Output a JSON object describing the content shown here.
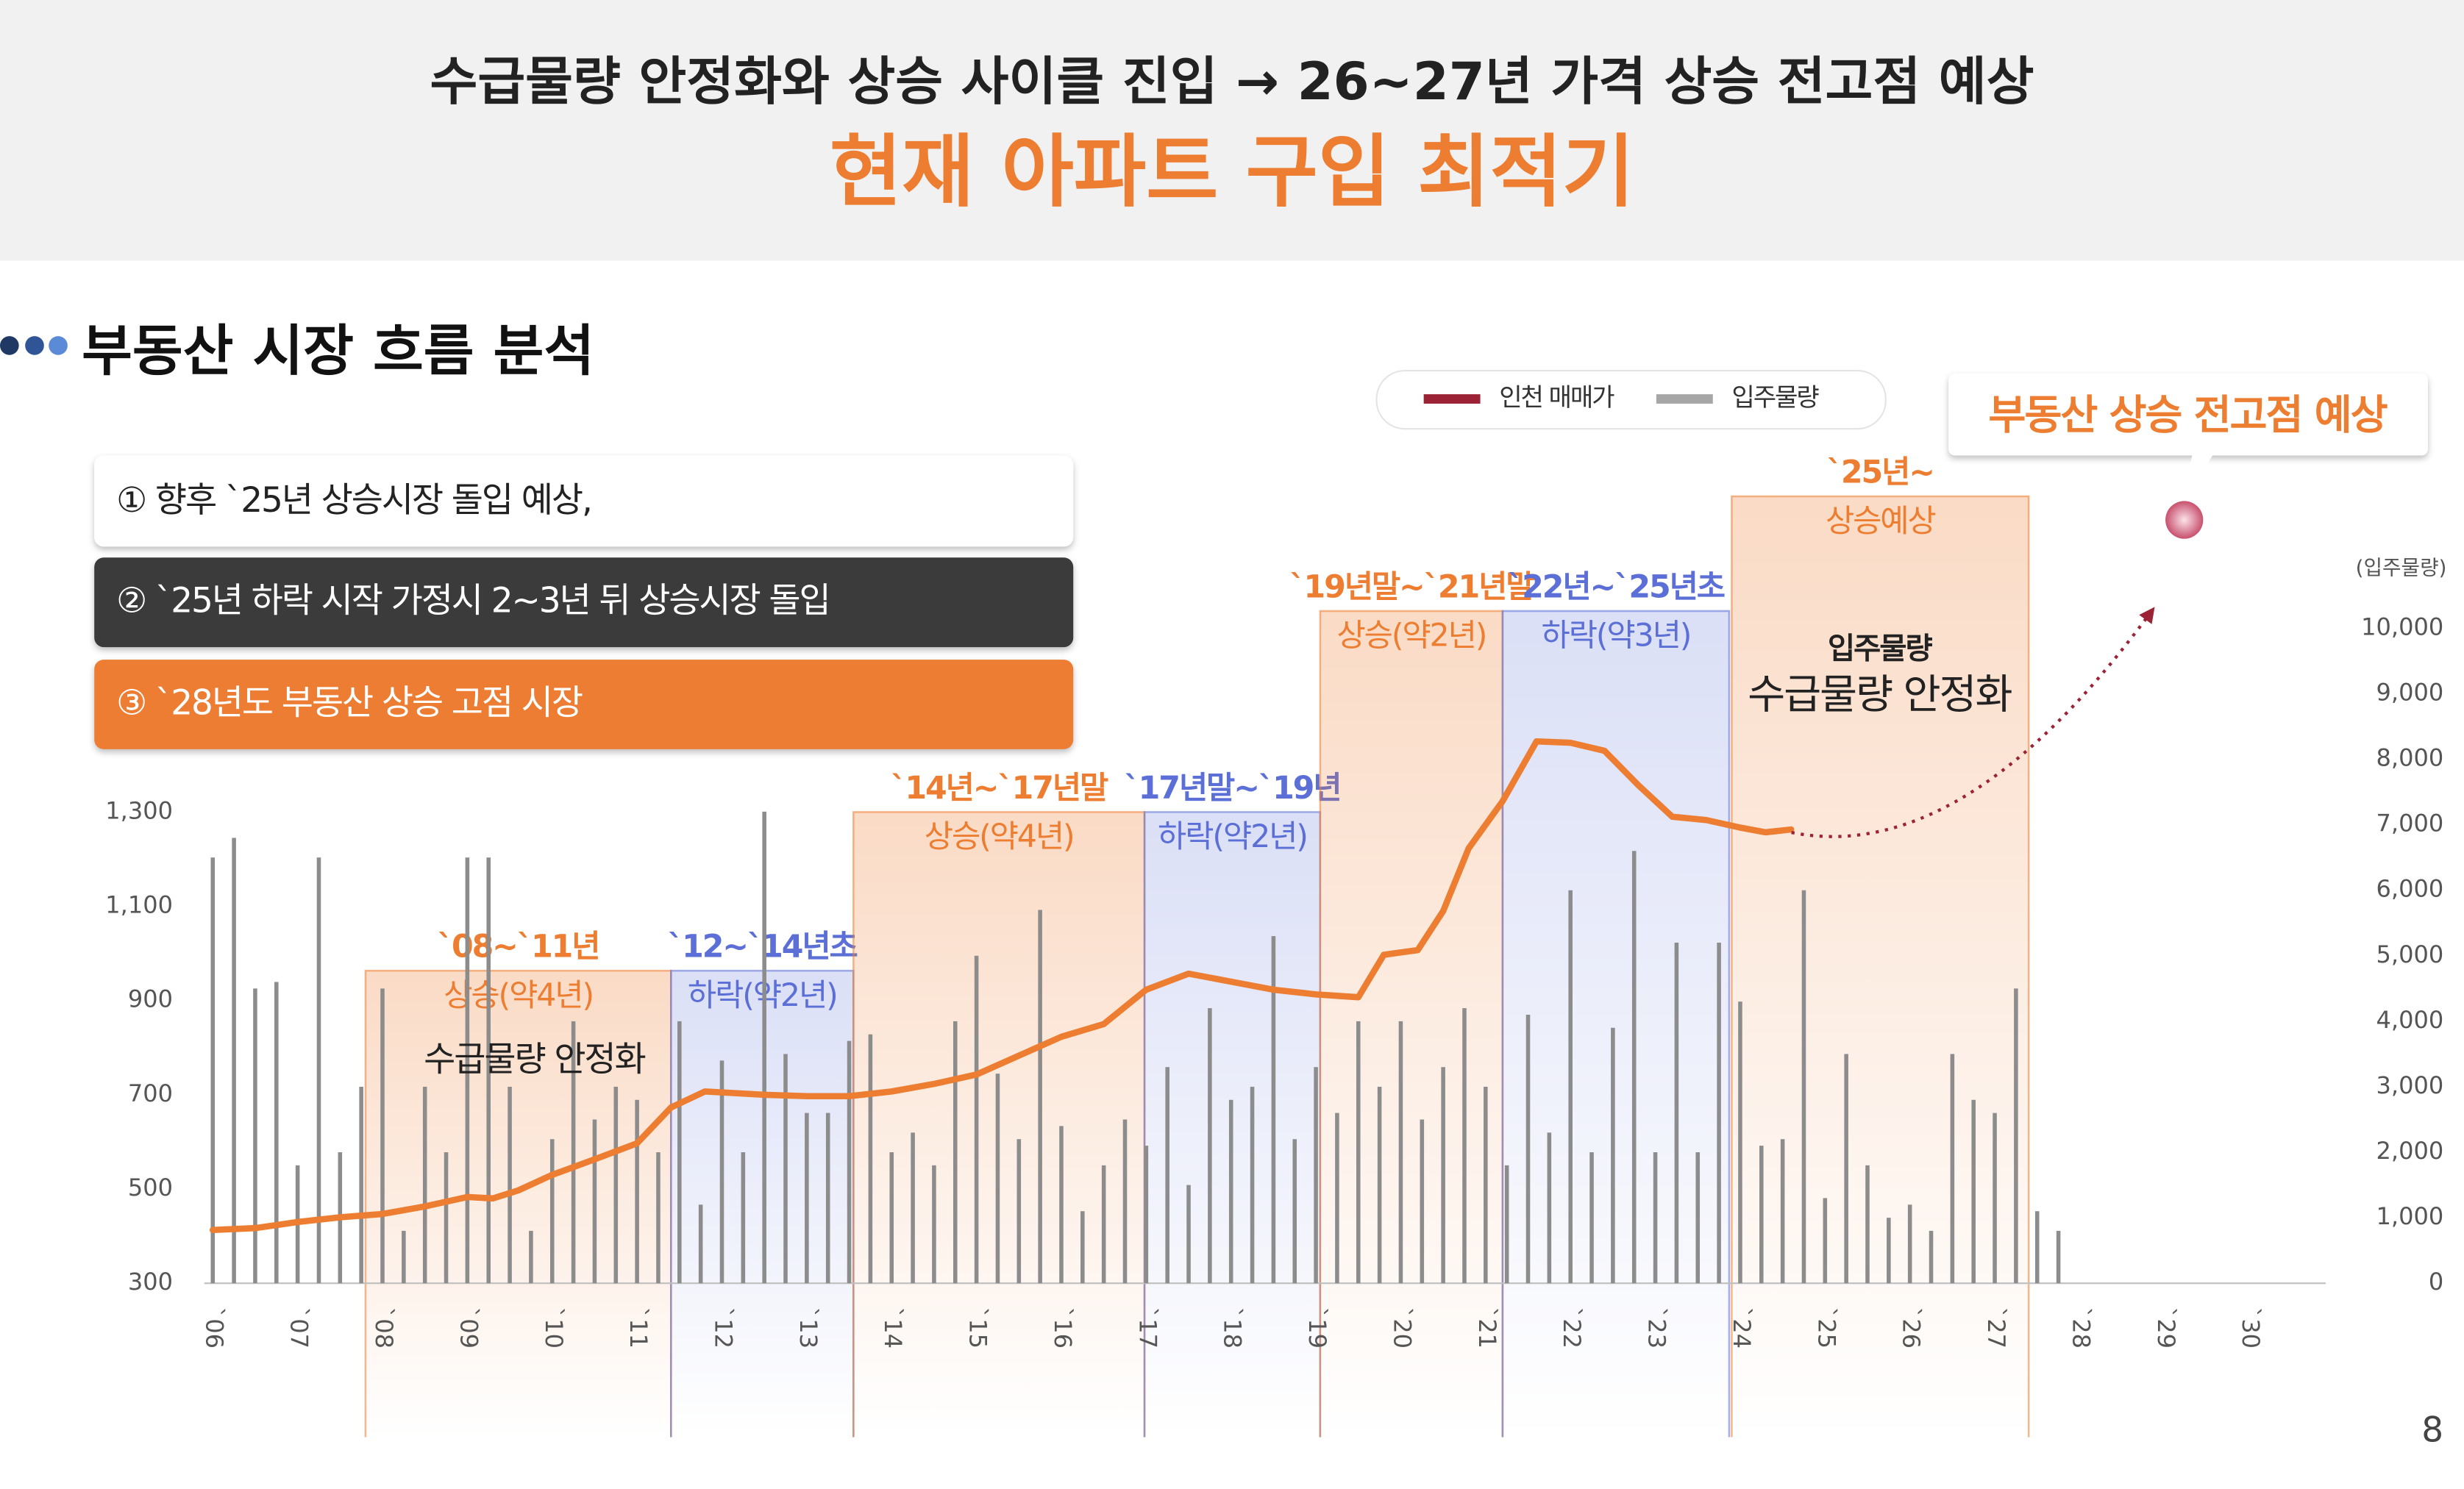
{
  "header": {
    "title": "수급물량 안정화와 상승 사이클 진입 → 26~27년 가격 상승 전고점 예상",
    "subtitle": "현재 아파트 구입 최적기"
  },
  "section_title": "부동산 시장 흐름 분석",
  "notes": [
    "① 향후 `25년 상승시장 돌입 예상,",
    "② `25년 하락 시작 가정시 2~3년 뒤 상승시장 돌입",
    "③ `28년도 부동산 상승 고점 시장"
  ],
  "page_number": "8",
  "chart_data": {
    "type": "combo",
    "xlim": [
      2005.9,
      2030.9
    ],
    "xticks": [
      {
        "value": 2006,
        "label": "`06"
      },
      {
        "value": 2007,
        "label": "`07"
      },
      {
        "value": 2008,
        "label": "`08"
      },
      {
        "value": 2009,
        "label": "`09"
      },
      {
        "value": 2010,
        "label": "`10"
      },
      {
        "value": 2011,
        "label": "`11"
      },
      {
        "value": 2012,
        "label": "`12"
      },
      {
        "value": 2013,
        "label": "`13"
      },
      {
        "value": 2014,
        "label": "`14"
      },
      {
        "value": 2015,
        "label": "`15"
      },
      {
        "value": 2016,
        "label": "`16"
      },
      {
        "value": 2017,
        "label": "`17"
      },
      {
        "value": 2018,
        "label": "`18"
      },
      {
        "value": 2019,
        "label": "`19"
      },
      {
        "value": 2020,
        "label": "`20"
      },
      {
        "value": 2021,
        "label": "`21"
      },
      {
        "value": 2022,
        "label": "`22"
      },
      {
        "value": 2023,
        "label": "`23"
      },
      {
        "value": 2024,
        "label": "`24"
      },
      {
        "value": 2025,
        "label": "`25"
      },
      {
        "value": 2026,
        "label": "`26"
      },
      {
        "value": 2027,
        "label": "`27"
      },
      {
        "value": 2028,
        "label": "`28"
      },
      {
        "value": 2029,
        "label": "`29"
      },
      {
        "value": 2030,
        "label": "`30"
      }
    ],
    "ylim": [
      300,
      1690
    ],
    "yticks": [
      300,
      500,
      700,
      900,
      {
        "value": 1100,
        "label": "1,100"
      },
      {
        "value": 1300,
        "label": "1,300"
      }
    ],
    "y2lim": [
      0,
      10000
    ],
    "y2ticks": [
      0,
      {
        "value": 1000,
        "label": "1,000"
      },
      {
        "value": 2000,
        "label": "2,000"
      },
      {
        "value": 3000,
        "label": "3,000"
      },
      {
        "value": 4000,
        "label": "4,000"
      },
      {
        "value": 5000,
        "label": "5,000"
      },
      {
        "value": 6000,
        "label": "6,000"
      },
      {
        "value": 7000,
        "label": "7,000"
      },
      {
        "value": 8000,
        "label": "8,000"
      },
      {
        "value": 9000,
        "label": "9,000"
      },
      {
        "value": 10000,
        "label": "10,000"
      }
    ],
    "y2_label": "(입주물량)",
    "series": [
      {
        "name": "인천 매매가",
        "type": "line",
        "axis": "y",
        "color": "#ed7d31",
        "legend_color": "#9b2335",
        "x": [
          2006.0,
          2006.5,
          2007.0,
          2007.5,
          2008.0,
          2008.5,
          2009.0,
          2009.3,
          2009.6,
          2010.0,
          2010.5,
          2011.0,
          2011.4,
          2011.8,
          2012.5,
          2013.0,
          2013.5,
          2014.0,
          2014.5,
          2015.0,
          2015.5,
          2016.0,
          2016.5,
          2017.0,
          2017.5,
          2018.0,
          2018.5,
          2019.0,
          2019.5,
          2019.8,
          2020.2,
          2020.5,
          2020.8,
          2021.2,
          2021.6,
          2022.0,
          2022.4,
          2022.8,
          2023.2,
          2023.6,
          2024.0,
          2024.3,
          2024.6
        ],
        "values": [
          413,
          417,
          430,
          440,
          447,
          463,
          483,
          480,
          497,
          530,
          563,
          597,
          673,
          707,
          700,
          697,
          697,
          707,
          723,
          743,
          783,
          823,
          850,
          923,
          957,
          940,
          923,
          913,
          907,
          997,
          1007,
          1090,
          1223,
          1323,
          1450,
          1447,
          1430,
          1357,
          1290,
          1283,
          1267,
          1257,
          1263
        ]
      },
      {
        "name": "입주물량",
        "type": "bar",
        "axis": "y2",
        "color": "#8c8c8c",
        "legend_color": "#a6a6a6",
        "x": [
          2006.0,
          2006.25,
          2006.5,
          2006.75,
          2007.0,
          2007.25,
          2007.5,
          2007.75,
          2008.0,
          2008.25,
          2008.5,
          2008.75,
          2009.0,
          2009.25,
          2009.5,
          2009.75,
          2010.0,
          2010.25,
          2010.5,
          2010.75,
          2011.0,
          2011.25,
          2011.5,
          2011.75,
          2012.0,
          2012.25,
          2012.5,
          2012.75,
          2013.0,
          2013.25,
          2013.5,
          2013.75,
          2014.0,
          2014.25,
          2014.5,
          2014.75,
          2015.0,
          2015.25,
          2015.5,
          2015.75,
          2016.0,
          2016.25,
          2016.5,
          2016.75,
          2017.0,
          2017.25,
          2017.5,
          2017.75,
          2018.0,
          2018.25,
          2018.5,
          2018.75,
          2019.0,
          2019.25,
          2019.5,
          2019.75,
          2020.0,
          2020.25,
          2020.5,
          2020.75,
          2021.0,
          2021.25,
          2021.5,
          2021.75,
          2022.0,
          2022.25,
          2022.5,
          2022.75,
          2023.0,
          2023.25,
          2023.5,
          2023.75,
          2024.0,
          2024.25,
          2024.5,
          2024.75,
          2025.0,
          2025.25,
          2025.5,
          2025.75,
          2026.0,
          2026.25,
          2026.5,
          2026.75,
          2027.0,
          2027.25,
          2027.5,
          2027.75
        ],
        "values": [
          6500,
          6800,
          4500,
          4600,
          1800,
          6500,
          2000,
          3000,
          4500,
          800,
          3000,
          2000,
          6500,
          6500,
          3000,
          800,
          2200,
          4000,
          2500,
          3000,
          2800,
          2000,
          4000,
          1200,
          3400,
          2000,
          7200,
          3500,
          2600,
          2600,
          3700,
          3800,
          2000,
          2300,
          1800,
          4000,
          5000,
          3200,
          2200,
          5700,
          2400,
          1100,
          1800,
          2500,
          2100,
          3300,
          1500,
          4200,
          2800,
          3000,
          5300,
          2200,
          3300,
          2600,
          4000,
          3000,
          4000,
          2500,
          3300,
          4200,
          3000,
          1800,
          4100,
          2300,
          6000,
          2000,
          3900,
          6600,
          2000,
          5200,
          2000,
          5200,
          4300,
          2100,
          2200,
          6000,
          1300,
          3500,
          1800,
          1000,
          1200,
          800,
          3500,
          2800,
          2600,
          4500,
          1100,
          800
        ]
      }
    ],
    "periods": [
      {
        "label": "`08~`11년",
        "phase": "상승(약4년)",
        "start": 2007.8,
        "end": 2011.4,
        "color": "#ed7d31"
      },
      {
        "label": "`12~`14년초",
        "phase": "하락(약2년)",
        "start": 2011.4,
        "end": 2013.55,
        "color": "#5b6fd6"
      },
      {
        "label": "`14년~`17년말",
        "phase": "상승(약4년)",
        "start": 2013.55,
        "end": 2016.98,
        "color": "#ed7d31"
      },
      {
        "label": "`17년말~`19년",
        "phase": "하락(약2년)",
        "start": 2016.98,
        "end": 2019.05,
        "color": "#5b6fd6"
      },
      {
        "label": "`19년말~`21년말",
        "phase": "상승(약2년)",
        "start": 2019.05,
        "end": 2021.2,
        "color": "#ed7d31"
      },
      {
        "label": "`22년~`25년초",
        "phase": "하락(약3년)",
        "start": 2021.2,
        "end": 2023.87,
        "color": "#5b6fd6"
      },
      {
        "label": "`25년~",
        "phase": "상승예상",
        "start": 2023.9,
        "end": 2027.4,
        "color": "#ed7d31"
      }
    ],
    "annotations": [
      "수급물량 안정화",
      "입주물량",
      "수급물량 안정화",
      "부동산 상승 전고점 예상"
    ]
  }
}
